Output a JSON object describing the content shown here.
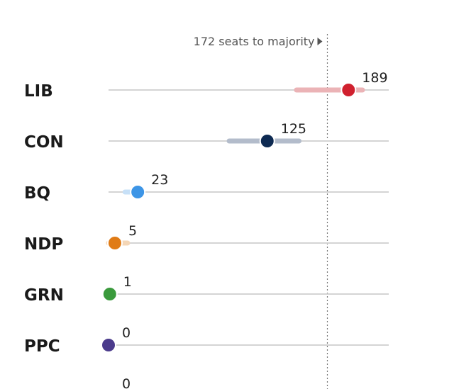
{
  "chart_data": {
    "type": "dot",
    "majority": {
      "label": "172 seats to majority",
      "seats": 172
    },
    "series": [
      {
        "party": "LIB",
        "seats": 189,
        "range": [
          148,
          200
        ],
        "color": "#d0202e",
        "range_color": "#ebb3b6"
      },
      {
        "party": "CON",
        "seats": 125,
        "range": [
          95,
          150
        ],
        "color": "#0e2a52",
        "range_color": "#b3bccb"
      },
      {
        "party": "BQ",
        "seats": 23,
        "range": [
          13,
          26
        ],
        "color": "#3d95e6",
        "range_color": "#c7e0f7"
      },
      {
        "party": "NDP",
        "seats": 5,
        "range": [
          0,
          15
        ],
        "color": "#e07b16",
        "range_color": "#f4d6b6"
      },
      {
        "party": "GRN",
        "seats": 1,
        "range": [
          0,
          3
        ],
        "color": "#3a9a3c",
        "range_color": "#c4e2c4"
      },
      {
        "party": "PPC",
        "seats": 0,
        "range": [
          0,
          1
        ],
        "color": "#4b3b8c",
        "range_color": "#cfc9e4"
      },
      {
        "party": "",
        "seats": 0,
        "range": [
          0,
          1
        ],
        "color": "#7a7a7a",
        "range_color": "#dddddd"
      }
    ],
    "xlim": [
      0,
      230
    ]
  }
}
